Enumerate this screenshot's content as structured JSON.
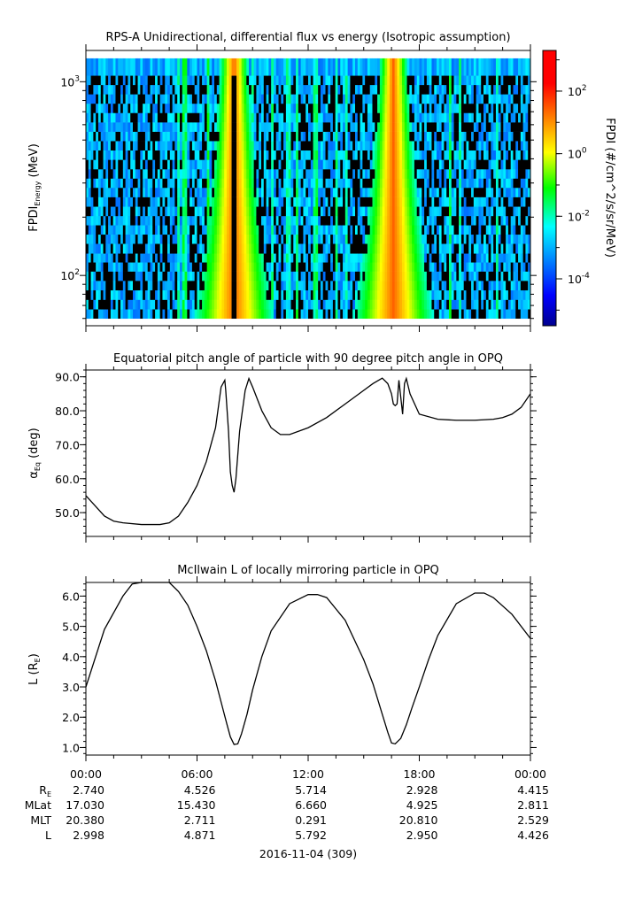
{
  "chart_data": [
    {
      "type": "heatmap",
      "title": "RPS-A Unidirectional, differential flux vs energy (Isotropic assumption)",
      "ylabel_main": "FPDI",
      "ylabel_sub": "Energy",
      "ylabel_unit": " (MeV)",
      "ylog": true,
      "ylim": [
        55,
        1450
      ],
      "yticks": [
        {
          "value": 100,
          "base": "10",
          "exp": "2"
        },
        {
          "value": 1000,
          "base": "10",
          "exp": "3"
        }
      ],
      "energy_bins": [
        60,
        67,
        75,
        84,
        94,
        105,
        117,
        130,
        146,
        163,
        182,
        203,
        227,
        254,
        284,
        317,
        354,
        396,
        443,
        495,
        553,
        618,
        691,
        772,
        863,
        964,
        1077,
        1320
      ],
      "peaks_hours": [
        8.0,
        16.6
      ],
      "dropout_hours": [
        8.0
      ],
      "background_log10": -3.0,
      "colorbar": {
        "label": "FPDI (#/cm^2/s/sr/MeV)",
        "log": true,
        "range_log10": [
          -5.5,
          3.3
        ],
        "ticks": [
          {
            "value": 2,
            "base": "10",
            "exp": "2"
          },
          {
            "value": 0,
            "base": "10",
            "exp": "0"
          },
          {
            "value": -2,
            "base": "10",
            "exp": "-2"
          },
          {
            "value": -4,
            "base": "10",
            "exp": "-4"
          }
        ]
      }
    },
    {
      "type": "line",
      "title": "Equatorial pitch angle of particle with 90 degree pitch angle in OPQ",
      "ylabel_main": "α",
      "ylabel_sub": "Eq",
      "ylabel_unit": " (deg)",
      "ylim": [
        43,
        92
      ],
      "yticks": [
        50,
        60,
        70,
        80,
        90
      ],
      "x_hours": [
        0,
        0.5,
        1,
        1.5,
        2,
        3,
        4,
        4.5,
        5,
        5.5,
        6,
        6.5,
        7,
        7.3,
        7.5,
        7.55,
        7.7,
        7.8,
        7.9,
        8.0,
        8.1,
        8.3,
        8.6,
        8.8,
        9,
        9.5,
        10,
        10.5,
        11,
        12,
        13,
        14,
        15,
        15.5,
        16,
        16.3,
        16.5,
        16.6,
        16.7,
        16.8,
        16.9,
        17.0,
        17.1,
        17.2,
        17.3,
        17.5,
        18,
        19,
        20,
        21,
        22,
        22.5,
        23,
        23.5,
        24
      ],
      "y_deg": [
        55,
        52,
        49,
        47.5,
        47,
        46.5,
        46.5,
        47,
        49,
        53,
        58,
        65,
        75,
        87,
        89,
        86,
        74,
        62,
        58,
        56,
        60,
        74,
        86,
        89.5,
        87,
        80,
        75,
        73,
        73,
        75,
        78,
        82,
        86,
        88,
        89.6,
        88,
        85,
        82,
        81.5,
        82,
        89,
        84,
        79,
        88,
        89.5,
        85,
        79,
        77.5,
        77.2,
        77.2,
        77.5,
        78,
        79,
        81,
        85
      ]
    },
    {
      "type": "line",
      "title": "McIlwain L of locally mirroring particle in OPQ",
      "ylabel_main": "L (R",
      "ylabel_sub": "E",
      "ylabel_unit": ")",
      "ylim": [
        0.75,
        6.45
      ],
      "yticks": [
        1,
        2,
        3,
        4,
        5,
        6
      ],
      "x_hours": [
        0,
        1,
        2,
        2.5,
        3,
        3.5,
        4,
        4.5,
        5,
        5.5,
        6,
        6.5,
        7,
        7.3,
        7.6,
        7.8,
        8.0,
        8.2,
        8.4,
        8.7,
        9,
        9.5,
        10,
        11,
        12,
        12.5,
        13,
        14,
        15,
        15.5,
        16,
        16.3,
        16.5,
        16.7,
        17.0,
        17.3,
        17.6,
        18,
        18.5,
        19,
        20,
        21,
        21.5,
        22,
        23,
        24
      ],
      "y_re": [
        3.0,
        4.9,
        6.0,
        6.4,
        6.5,
        6.5,
        6.5,
        6.45,
        6.15,
        5.7,
        5.0,
        4.2,
        3.2,
        2.5,
        1.8,
        1.35,
        1.1,
        1.12,
        1.45,
        2.1,
        2.9,
        4.0,
        4.85,
        5.75,
        6.05,
        6.05,
        5.95,
        5.2,
        3.9,
        3.1,
        2.1,
        1.5,
        1.15,
        1.12,
        1.3,
        1.75,
        2.3,
        3.0,
        3.9,
        4.7,
        5.75,
        6.1,
        6.1,
        5.95,
        5.4,
        4.6
      ]
    }
  ],
  "x_axis": {
    "tick_labels": [
      "00:00",
      "06:00",
      "12:00",
      "18:00",
      "00:00"
    ],
    "tick_hours": [
      0,
      6,
      12,
      18,
      24
    ],
    "minor_step_hours": 1.5,
    "date_label": "2016-11-04 (309)"
  },
  "ephemeris": {
    "rows": [
      {
        "name": "R",
        "sub": "E",
        "values": [
          "2.740",
          "4.526",
          "5.714",
          "2.928",
          "4.415"
        ]
      },
      {
        "name": "MLat",
        "sub": "",
        "values": [
          "17.030",
          "15.430",
          "6.660",
          "4.925",
          "2.811"
        ]
      },
      {
        "name": "MLT",
        "sub": "",
        "values": [
          "20.380",
          "2.711",
          "0.291",
          "20.810",
          "2.529"
        ]
      },
      {
        "name": "L",
        "sub": "",
        "values": [
          "2.998",
          "4.871",
          "5.792",
          "2.950",
          "4.426"
        ]
      }
    ]
  },
  "colors": {
    "line": "#000000",
    "axis": "#000000",
    "colormap": [
      "#00008f",
      "#0000ff",
      "#00ffff",
      "#00ff00",
      "#ffff00",
      "#ff0000",
      "#800000"
    ]
  }
}
